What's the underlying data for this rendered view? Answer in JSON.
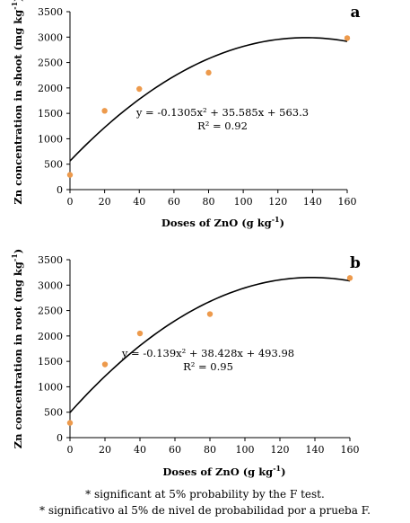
{
  "chart_data": [
    {
      "type": "scatter",
      "panel_label": "a",
      "xlabel": "Doses of ZnO (g kg",
      "xlabel_sup": "-1",
      "xlabel_close": ")",
      "ylabel": "Zn concentration in shoot (mg kg",
      "ylabel_sup": "-1",
      "ylabel_close": ")",
      "xlim": [
        0,
        160
      ],
      "ylim": [
        0,
        3500
      ],
      "xticks": [
        0,
        20,
        40,
        60,
        80,
        100,
        120,
        140,
        160
      ],
      "yticks": [
        0,
        500,
        1000,
        1500,
        2000,
        2500,
        3000,
        3500
      ],
      "points": [
        {
          "x": 0,
          "y": 290
        },
        {
          "x": 20,
          "y": 1550
        },
        {
          "x": 40,
          "y": 1980
        },
        {
          "x": 80,
          "y": 2300
        },
        {
          "x": 160,
          "y": 2980
        }
      ],
      "fit": {
        "a": -0.1305,
        "b": 35.585,
        "c": 563.3
      },
      "equation_text": "y = -0.1305x² + 35.585x + 563.3",
      "r2_text": "R² = 0.92",
      "point_color": "#ed9a4c",
      "line_color": "#000000"
    },
    {
      "type": "scatter",
      "panel_label": "b",
      "xlabel": "Doses of ZnO (g kg",
      "xlabel_sup": "-1",
      "xlabel_close": ")",
      "ylabel": "Zn  concentration in root (mg kg",
      "ylabel_sup": "-1",
      "ylabel_close": ")",
      "xlim": [
        0,
        160
      ],
      "ylim": [
        0,
        3500
      ],
      "xticks": [
        0,
        20,
        40,
        60,
        80,
        100,
        120,
        140,
        160
      ],
      "yticks": [
        0,
        500,
        1000,
        1500,
        2000,
        2500,
        3000,
        3500
      ],
      "points": [
        {
          "x": 0,
          "y": 290
        },
        {
          "x": 20,
          "y": 1440
        },
        {
          "x": 40,
          "y": 2050
        },
        {
          "x": 80,
          "y": 2430
        },
        {
          "x": 160,
          "y": 3140
        }
      ],
      "fit": {
        "a": -0.139,
        "b": 38.428,
        "c": 493.98
      },
      "equation_text": "y = -0.139x² + 38.428x + 493.98",
      "r2_text": "R² = 0.95",
      "point_color": "#ed9a4c",
      "line_color": "#000000"
    }
  ],
  "footnotes": {
    "line1": "* significant at 5% probability by the F test.",
    "line2": "* significativo al 5% de nivel de probabilidad por a prueba F."
  }
}
